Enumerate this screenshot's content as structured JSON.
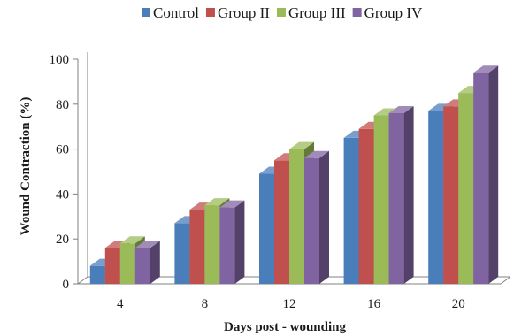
{
  "chart_data": {
    "type": "bar",
    "style": "3d-clustered-column",
    "title": "",
    "xlabel": "Days post - wounding",
    "ylabel": "Wound Contraction (%)",
    "ylim": [
      0,
      100
    ],
    "yticks": [
      0,
      20,
      40,
      60,
      80,
      100
    ],
    "categories": [
      "4",
      "8",
      "12",
      "16",
      "20"
    ],
    "legend_position": "top",
    "grid": false,
    "series": [
      {
        "name": "Control",
        "color": "#4a7ebb",
        "values": [
          8,
          27,
          49,
          65,
          77
        ]
      },
      {
        "name": "Group II",
        "color": "#c0504d",
        "values": [
          16,
          33,
          55,
          69,
          79
        ]
      },
      {
        "name": "Group III",
        "color": "#9bbb59",
        "values": [
          18,
          35,
          60,
          75,
          85
        ]
      },
      {
        "name": "Group IV",
        "color": "#8064a2",
        "values": [
          16,
          34,
          56,
          76,
          94
        ]
      }
    ]
  }
}
